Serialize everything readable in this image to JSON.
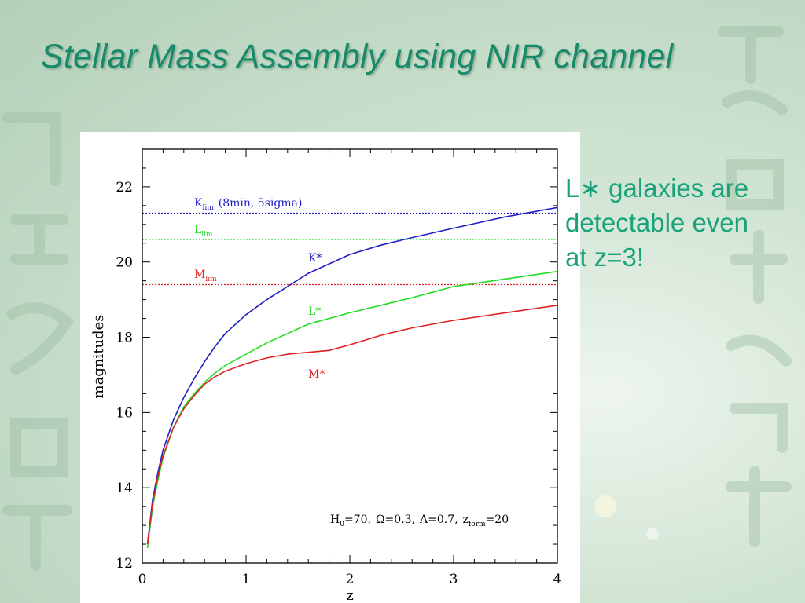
{
  "slide": {
    "title": "Stellar Mass Assembly using NIR channel",
    "note_lines": [
      "L∗ galaxies are",
      "detectable even",
      "at z=3!"
    ]
  },
  "colors": {
    "title": "#178a6b",
    "note": "#1aa37a",
    "k_series": "#1f1fc8",
    "l_series": "#22dd22",
    "m_series": "#dd2222"
  },
  "chart_data": {
    "type": "line",
    "xlabel": "z",
    "ylabel": "magnitudes",
    "xlim": [
      0,
      4
    ],
    "ylim": [
      12,
      23
    ],
    "x_ticks": [
      0,
      1,
      2,
      3,
      4
    ],
    "y_ticks": [
      12,
      14,
      16,
      18,
      20,
      22
    ],
    "grid": false,
    "series": [
      {
        "name": "K*",
        "color": "#1f1fc8",
        "x": [
          0.05,
          0.1,
          0.15,
          0.2,
          0.3,
          0.4,
          0.5,
          0.6,
          0.7,
          0.8,
          1.0,
          1.2,
          1.4,
          1.6,
          1.8,
          2.0,
          2.3,
          2.6,
          3.0,
          3.5,
          4.0
        ],
        "y": [
          12.5,
          13.7,
          14.4,
          15.0,
          15.8,
          16.4,
          16.9,
          17.35,
          17.75,
          18.1,
          18.6,
          19.0,
          19.35,
          19.7,
          19.95,
          20.2,
          20.45,
          20.65,
          20.9,
          21.2,
          21.45
        ]
      },
      {
        "name": "L*",
        "color": "#22dd22",
        "x": [
          0.05,
          0.1,
          0.15,
          0.2,
          0.3,
          0.4,
          0.5,
          0.6,
          0.7,
          0.8,
          1.0,
          1.2,
          1.4,
          1.6,
          1.8,
          2.0,
          2.3,
          2.6,
          3.0,
          3.5,
          4.0
        ],
        "y": [
          12.4,
          13.5,
          14.2,
          14.8,
          15.6,
          16.15,
          16.5,
          16.8,
          17.05,
          17.25,
          17.55,
          17.85,
          18.1,
          18.35,
          18.5,
          18.65,
          18.85,
          19.05,
          19.35,
          19.55,
          19.75
        ]
      },
      {
        "name": "M*",
        "color": "#dd2222",
        "x": [
          0.05,
          0.1,
          0.15,
          0.2,
          0.3,
          0.4,
          0.5,
          0.6,
          0.7,
          0.8,
          1.0,
          1.2,
          1.4,
          1.6,
          1.8,
          2.0,
          2.3,
          2.6,
          3.0,
          3.5,
          4.0
        ],
        "y": [
          12.5,
          13.6,
          14.3,
          14.85,
          15.6,
          16.1,
          16.45,
          16.75,
          16.95,
          17.1,
          17.3,
          17.45,
          17.55,
          17.6,
          17.65,
          17.8,
          18.05,
          18.25,
          18.45,
          18.65,
          18.85
        ]
      }
    ],
    "limits": [
      {
        "key": "k_lim",
        "value": 21.3,
        "color": "#1f1fc8"
      },
      {
        "key": "l_lim",
        "value": 20.6,
        "color": "#22dd22"
      },
      {
        "key": "m_lim",
        "value": 19.4,
        "color": "#dd2222"
      }
    ],
    "annotations": {
      "k_lim_base": "K",
      "k_lim_sub": "lim",
      "k_lim_extra": "(8min, 5sigma)",
      "l_lim_base": "L",
      "l_lim_sub": "lim",
      "m_lim_base": "M",
      "m_lim_sub": "lim",
      "k_star": "K*",
      "l_star": "L*",
      "m_star": "M*",
      "params": {
        "h_base": "H",
        "h_sub": "0",
        "h_val": "=70,",
        "omega": "Ω=0.3,",
        "lambda": "Λ=0.7,",
        "z_base": "z",
        "z_sub": "form",
        "z_val": "=20"
      }
    }
  }
}
